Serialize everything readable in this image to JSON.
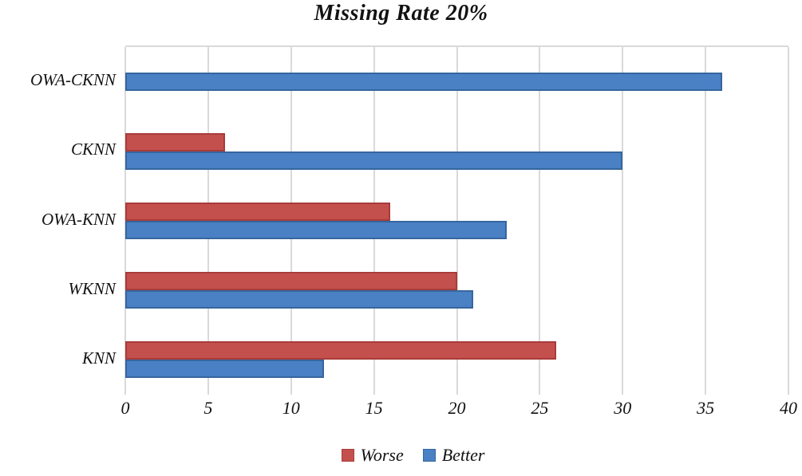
{
  "chart_data": {
    "type": "bar",
    "orientation": "horizontal",
    "title": "Missing Rate 20%",
    "categories": [
      "OWA-CKNN",
      "CKNN",
      "OWA-KNN",
      "WKNN",
      "KNN"
    ],
    "series": [
      {
        "name": "Worse",
        "color": "#c4504e",
        "border_color": "#a83c3a",
        "values": [
          0,
          6,
          16,
          20,
          26
        ]
      },
      {
        "name": "Better",
        "color": "#4a80c4",
        "border_color": "#36669e",
        "values": [
          36,
          30,
          23,
          21,
          12
        ]
      }
    ],
    "xlim": [
      0,
      40
    ],
    "x_ticks": [
      0,
      5,
      10,
      15,
      20,
      25,
      30,
      35,
      40
    ],
    "grid": true,
    "gridline_color": "#d9d9d9",
    "legend_position": "bottom",
    "plot_background": "#ffffff"
  }
}
